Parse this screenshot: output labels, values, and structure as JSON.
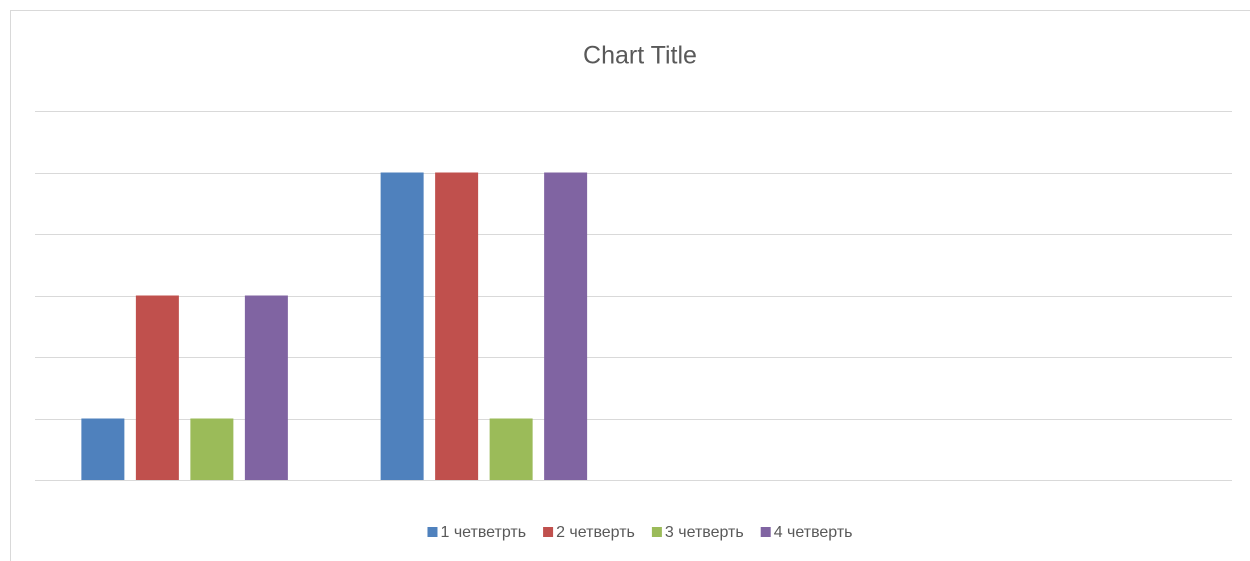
{
  "chart_data": {
    "type": "bar",
    "title": "Chart Title",
    "categories": [
      null,
      null,
      null,
      null
    ],
    "series": [
      {
        "name": "1 четветрть",
        "color": "#4f81bd",
        "values": [
          1,
          5,
          null,
          null
        ]
      },
      {
        "name": "2 четверть",
        "color": "#c0504d",
        "values": [
          3,
          5,
          null,
          null
        ]
      },
      {
        "name": "3 четверть",
        "color": "#9bbb59",
        "values": [
          1,
          1,
          null,
          null
        ]
      },
      {
        "name": "4 четверть",
        "color": "#8064a2",
        "values": [
          3,
          5,
          null,
          null
        ]
      }
    ],
    "ylim": [
      0,
      6
    ],
    "yticks": [
      0,
      1,
      2,
      3,
      4,
      5,
      6
    ],
    "grid": true,
    "legend": "bottom"
  }
}
